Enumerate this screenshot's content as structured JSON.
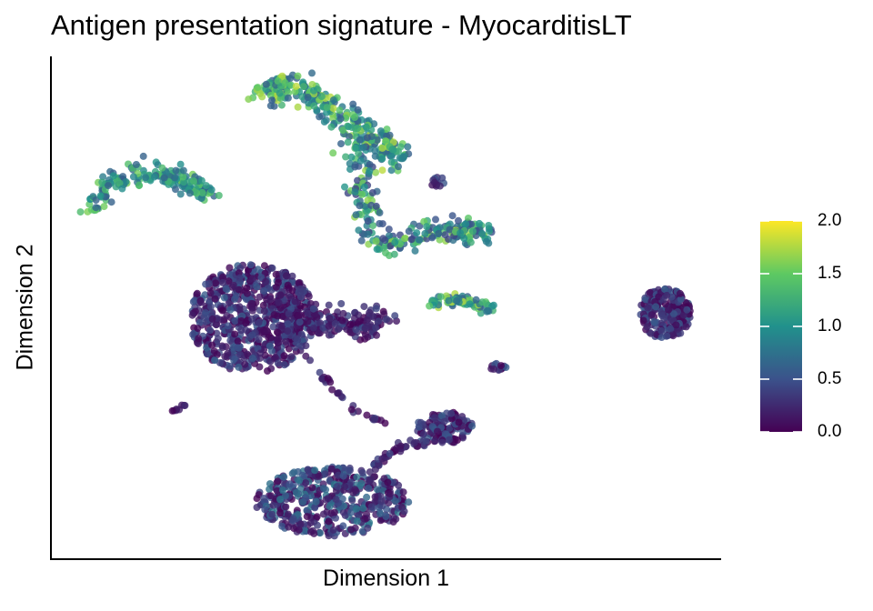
{
  "chart_data": {
    "type": "scatter",
    "title": "Antigen presentation signature - MyocarditisLT",
    "xlabel": "Dimension 1",
    "ylabel": "Dimension 2",
    "xlim": [
      0,
      100
    ],
    "ylim": [
      0,
      100
    ],
    "grid": false,
    "axis_ticks": false,
    "legend_placement": "right",
    "colorbar": {
      "title": "",
      "min": 0.0,
      "max": 2.0,
      "tick_values": [
        0.0,
        0.5,
        1.0,
        1.5,
        2.0
      ],
      "tick_labels": [
        "0.0",
        "0.5",
        "1.0",
        "1.5",
        "2.0"
      ],
      "palette": "viridis",
      "colors": [
        "#440154",
        "#3b528b",
        "#21918c",
        "#5ec962",
        "#fde725"
      ]
    },
    "point_alpha": 0.8,
    "clusters": [
      {
        "name": "arc_upper_left",
        "n": 190,
        "score": [
          0.6,
          1.6
        ],
        "shape": "curve",
        "pts": [
          [
            5.5,
            69
          ],
          [
            8,
            75
          ],
          [
            12,
            77
          ],
          [
            17,
            77
          ],
          [
            21,
            75
          ],
          [
            23,
            73
          ]
        ],
        "width": 2.1
      },
      {
        "name": "upper_main",
        "n": 300,
        "score": [
          0.6,
          1.8
        ],
        "shape": "curve",
        "pts": [
          [
            32,
            93
          ],
          [
            36,
            95
          ],
          [
            42,
            90
          ],
          [
            48,
            84
          ],
          [
            52,
            80
          ]
        ],
        "width": 3.2
      },
      {
        "name": "upper_branch",
        "n": 250,
        "score": [
          0.4,
          1.7
        ],
        "shape": "curve",
        "pts": [
          [
            46,
            82
          ],
          [
            46,
            76
          ],
          [
            47,
            70
          ],
          [
            48,
            64
          ],
          [
            51,
            62
          ],
          [
            55,
            65
          ],
          [
            59,
            66
          ],
          [
            61,
            65
          ],
          [
            63,
            66
          ],
          [
            65,
            65
          ]
        ],
        "width": 2.6
      },
      {
        "name": "upper_right_spot",
        "n": 12,
        "score": [
          0.1,
          0.6
        ],
        "shape": "blob",
        "cx": 58,
        "cy": 75,
        "rx": 1.3,
        "ry": 1.4
      },
      {
        "name": "big_left_blob",
        "n": 700,
        "score": [
          0.0,
          0.6
        ],
        "shape": "blob",
        "cx": 30,
        "cy": 48,
        "rx": 9.5,
        "ry": 11
      },
      {
        "name": "big_left_tail",
        "n": 160,
        "score": [
          0.0,
          0.5
        ],
        "shape": "curve",
        "pts": [
          [
            36,
            48
          ],
          [
            41,
            47
          ],
          [
            46,
            46
          ],
          [
            50,
            48
          ]
        ],
        "width": 3.2
      },
      {
        "name": "connector_a",
        "n": 30,
        "score": [
          0.0,
          0.4
        ],
        "shape": "curve",
        "pts": [
          [
            38,
            40
          ],
          [
            42,
            34
          ],
          [
            46,
            29
          ],
          [
            50,
            27
          ]
        ],
        "width": 0.8
      },
      {
        "name": "center_small",
        "n": 70,
        "score": [
          0.6,
          1.8
        ],
        "shape": "curve",
        "pts": [
          [
            57,
            51
          ],
          [
            60,
            52
          ],
          [
            63,
            51
          ],
          [
            66,
            50
          ]
        ],
        "width": 1.3
      },
      {
        "name": "right_blob",
        "n": 230,
        "score": [
          0.0,
          0.6
        ],
        "shape": "blob",
        "cx": 92,
        "cy": 49,
        "rx": 3.8,
        "ry": 5.2
      },
      {
        "name": "tiny_mid",
        "n": 14,
        "score": [
          0.0,
          0.6
        ],
        "shape": "blob",
        "cx": 67,
        "cy": 38,
        "rx": 1.2,
        "ry": 0.9
      },
      {
        "name": "tiny_left",
        "n": 8,
        "score": [
          0.0,
          0.3
        ],
        "shape": "curve",
        "pts": [
          [
            18,
            29
          ],
          [
            20,
            31
          ]
        ],
        "width": 0.5
      },
      {
        "name": "lower_right_blob",
        "n": 120,
        "score": [
          0.0,
          0.6
        ],
        "shape": "blob",
        "cx": 59,
        "cy": 26,
        "rx": 4.3,
        "ry": 3.2
      },
      {
        "name": "lower_connector",
        "n": 40,
        "score": [
          0.0,
          0.5
        ],
        "shape": "curve",
        "pts": [
          [
            48,
            18
          ],
          [
            52,
            22
          ],
          [
            56,
            23
          ]
        ],
        "width": 0.9
      },
      {
        "name": "bottom_blob",
        "n": 480,
        "score": [
          0.0,
          0.8
        ],
        "shape": "blob",
        "cx": 42,
        "cy": 11,
        "rx": 11.5,
        "ry": 7
      }
    ]
  }
}
